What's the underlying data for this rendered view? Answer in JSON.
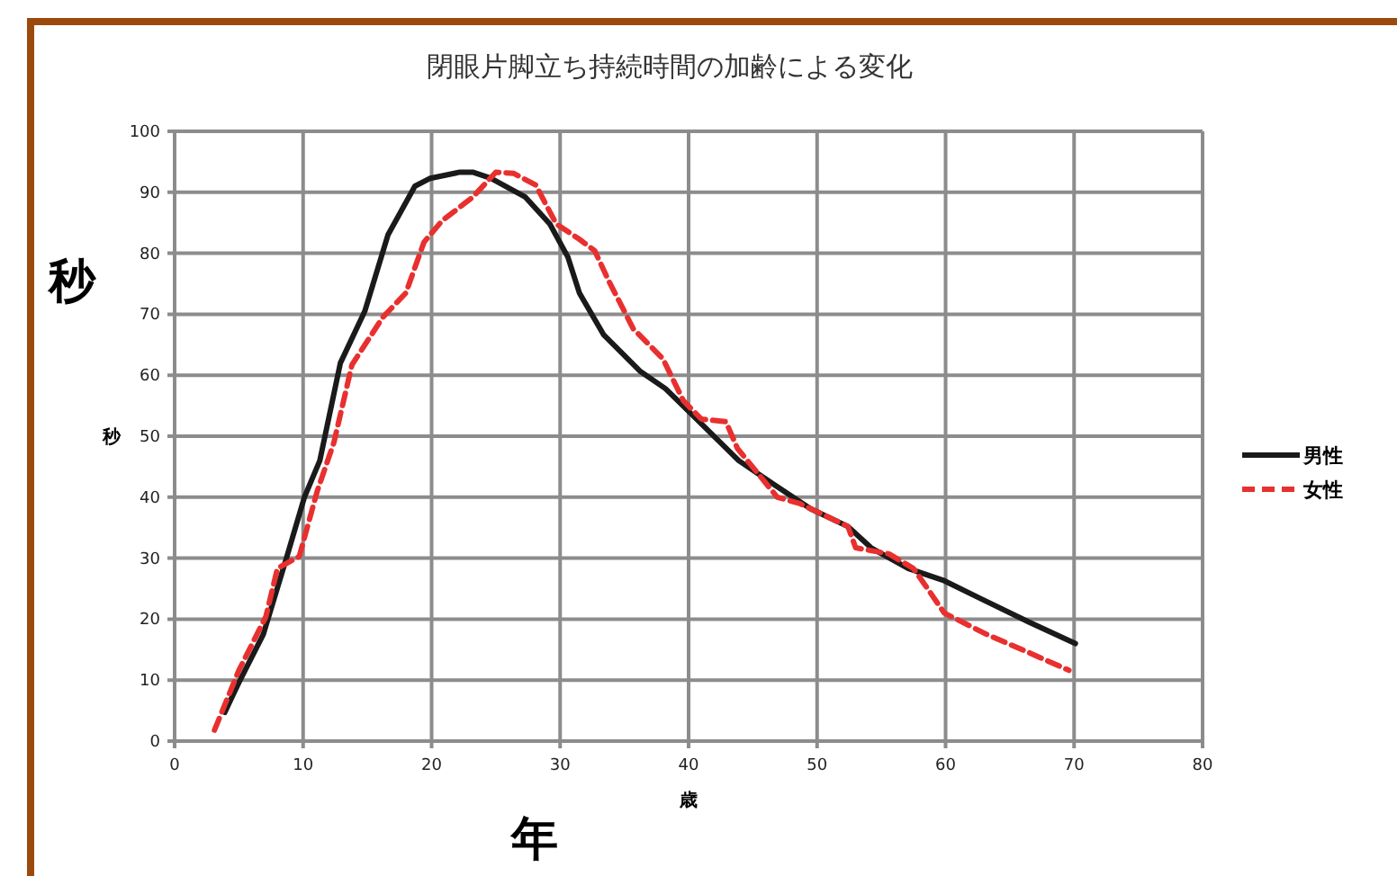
{
  "chart_data": {
    "type": "line",
    "title": "閉眼片脚立ち持続時間の加齢による変化",
    "xlabel": "歳",
    "ylabel": "秒",
    "annotations": [
      "秒",
      "年"
    ],
    "xlim": [
      0,
      80
    ],
    "xticks": [
      0,
      10,
      20,
      30,
      40,
      50,
      60,
      70,
      80
    ],
    "ylim": [
      0,
      100
    ],
    "yticks": [
      0,
      10,
      20,
      30,
      40,
      50,
      60,
      70,
      80,
      90,
      100
    ],
    "grid": true,
    "legend": "right",
    "series": [
      {
        "name": "男性",
        "color": "#1a1a1a",
        "line_style": "solid",
        "x": [
          3.9,
          5.0,
          6.9,
          8.7,
          10.1,
          11.3,
          12.9,
          14.8,
          16.6,
          18.7,
          19.9,
          22.2,
          23.2,
          24.6,
          27.3,
          29.2,
          30.6,
          31.5,
          33.4,
          36.2,
          38.2,
          40.1,
          43.9,
          46.7,
          49.5,
          52.4,
          54.2,
          57.1,
          59.9,
          62.7,
          66.5,
          70.1
        ],
        "values": [
          4.7,
          9.6,
          17.5,
          30,
          40,
          46,
          62,
          70.5,
          83,
          91,
          92.3,
          93.3,
          93.3,
          92.3,
          89.2,
          84.8,
          79.4,
          73.5,
          66.6,
          60.7,
          57.8,
          53.9,
          46,
          42,
          38.1,
          35.2,
          31.7,
          28.3,
          26.3,
          23.4,
          19.5,
          16
        ]
      },
      {
        "name": "女性",
        "color": "#e8302f",
        "line_style": "dashed",
        "x": [
          3.1,
          5,
          7.1,
          8,
          9.7,
          11.1,
          12.4,
          13.8,
          16.2,
          18,
          19.4,
          20.8,
          23.2,
          25,
          26.4,
          28.1,
          29.7,
          31.5,
          32.7,
          33.8,
          35.7,
          38,
          39.6,
          41,
          42.9,
          43.8,
          46.9,
          48.6,
          52.4,
          53,
          55.6,
          57.5,
          58.5,
          59.9,
          63.2,
          66.5,
          69.6
        ],
        "values": [
          1.8,
          11.6,
          20.4,
          28.3,
          30.3,
          41,
          49,
          61.7,
          69.5,
          73.5,
          81.8,
          85.3,
          89.2,
          93.3,
          93.1,
          91.2,
          84.8,
          82.3,
          80.4,
          75.4,
          67.6,
          62.7,
          55.8,
          52.8,
          52.4,
          48,
          40,
          39,
          35.2,
          31.7,
          30.7,
          28.3,
          25.3,
          21,
          17.5,
          14.5,
          11.6
        ]
      }
    ]
  }
}
